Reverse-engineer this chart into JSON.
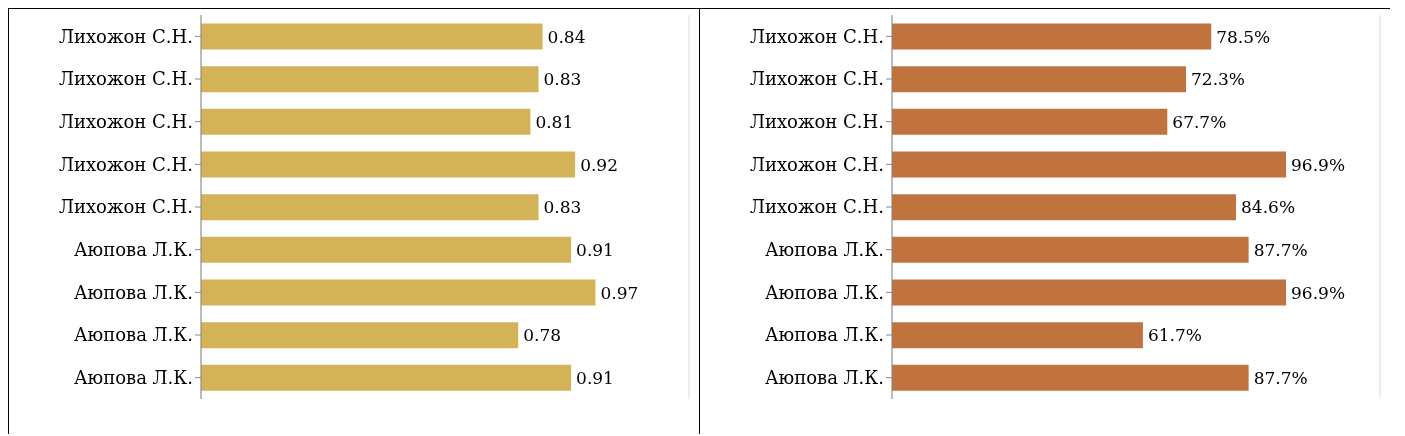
{
  "chart_data": [
    {
      "type": "bar",
      "orientation": "horizontal",
      "categories": [
        "Лихожон С.Н.",
        "Лихожон С.Н.",
        "Лихожон С.Н.",
        "Лихожон С.Н.",
        "Лихожон С.Н.",
        "Аюпова Л.К.",
        "Аюпова Л.К.",
        "Аюпова Л.К.",
        "Аюпова Л.К."
      ],
      "values": [
        0.84,
        0.83,
        0.81,
        0.92,
        0.83,
        0.91,
        0.97,
        0.78,
        0.91
      ],
      "color": "#d4b257",
      "data_labels": true,
      "xlim": [
        0,
        1.2
      ],
      "grid": "x",
      "tick_labels": "y",
      "legend": false
    },
    {
      "type": "bar",
      "orientation": "horizontal",
      "categories": [
        "Лихожон С.Н.",
        "Лихожон С.Н.",
        "Лихожон С.Н.",
        "Лихожон С.Н.",
        "Лихожон С.Н.",
        "Аюпова Л.К.",
        "Аюпова Л.К.",
        "Аюпова Л.К.",
        "Аюпова Л.К."
      ],
      "values": [
        78.5,
        72.3,
        67.7,
        96.9,
        84.6,
        87.7,
        96.9,
        61.7,
        87.7
      ],
      "color": "#c0733f",
      "value_labels": [
        "78.5%",
        "72.3%",
        "67.7%",
        "96.9%",
        "84.6%",
        "87.7%",
        "96.9%",
        "61.7%",
        "87.7%"
      ],
      "xlim": [
        0,
        120
      ],
      "grid": "x",
      "tick_labels": "y",
      "legend": false
    }
  ]
}
